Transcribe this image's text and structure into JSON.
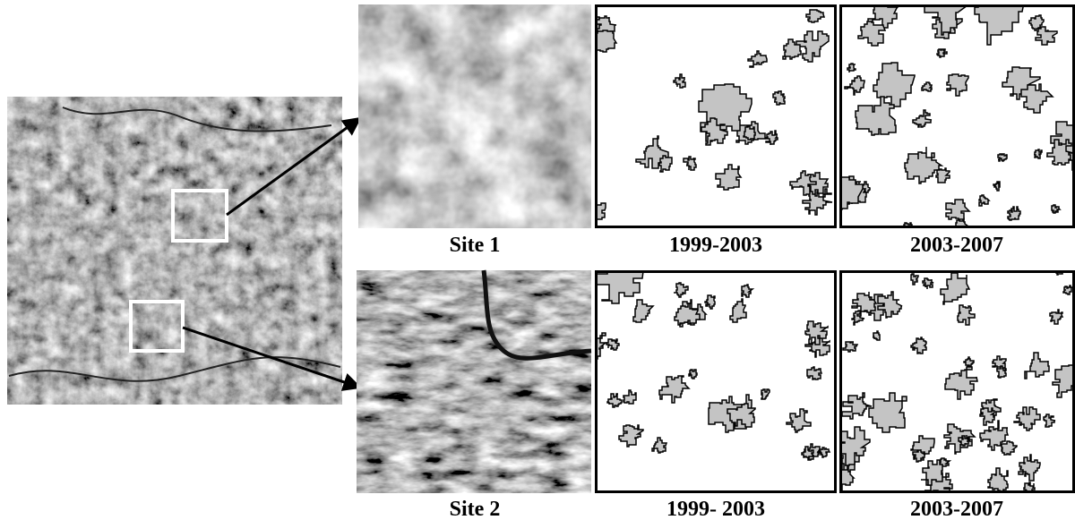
{
  "rows": [
    {
      "site": "Site 1",
      "periods": [
        "1999-2003",
        "2003-2007"
      ]
    },
    {
      "site": "Site 2",
      "periods": [
        "1999- 2003",
        "2003-2007"
      ]
    }
  ]
}
